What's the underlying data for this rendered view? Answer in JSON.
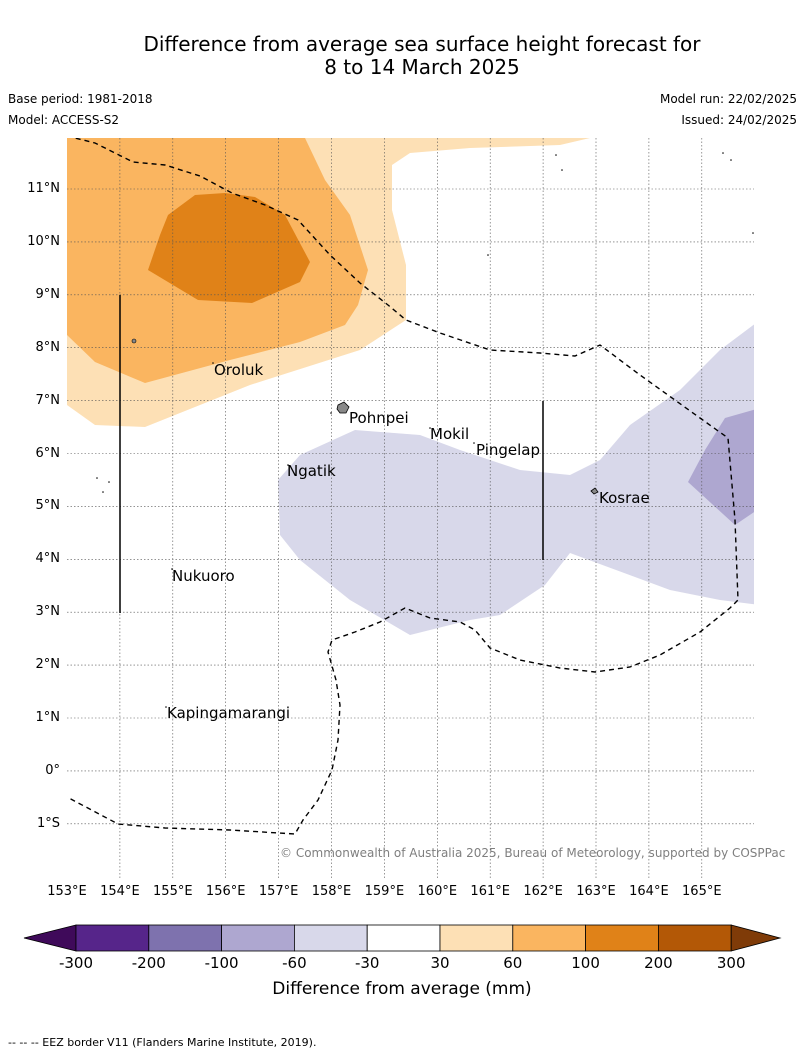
{
  "title_line1": "Difference from average sea surface height forecast for",
  "title_line2": "8 to 14 March 2025",
  "base_period": "Base period: 1981-2018",
  "model": "Model: ACCESS-S2",
  "model_run": "Model run: 22/02/2025",
  "issued": "Issued: 24/02/2025",
  "lat_labels": [
    "11°N",
    "10°N",
    "9°N",
    "8°N",
    "7°N",
    "6°N",
    "5°N",
    "4°N",
    "3°N",
    "2°N",
    "1°N",
    "0°",
    "1°S"
  ],
  "lon_labels": [
    "153°E",
    "154°E",
    "155°E",
    "156°E",
    "157°E",
    "158°E",
    "159°E",
    "160°E",
    "161°E",
    "162°E",
    "163°E",
    "164°E",
    "165°E"
  ],
  "places": {
    "oroluk": "Oroluk",
    "pohnpei": "Pohnpei",
    "mokil": "Mokil",
    "pingelap": "Pingelap",
    "ngatik": "Ngatik",
    "kosrae": "Kosrae",
    "nukuoro": "Nukuoro",
    "kapingamarangi": "Kapingamarangi"
  },
  "copyright": "© Commonwealth of Australia 2025, Bureau of Meteorology, supported by COSPPac",
  "colorbar": {
    "ticks": [
      "-300",
      "-200",
      "-100",
      "-60",
      "-30",
      "30",
      "60",
      "100",
      "200",
      "300"
    ],
    "label": "Difference from average (mm)",
    "colors": [
      "#3f0a5a",
      "#56258a",
      "#7e72ae",
      "#aea7d0",
      "#d8d8ea",
      "#ffffff",
      "#fde0b5",
      "#fab560",
      "#e08218",
      "#b35806",
      "#7f3b08"
    ]
  },
  "footer": "--  --  -- EEZ border V11 (Flanders Marine Institute, 2019)."
}
